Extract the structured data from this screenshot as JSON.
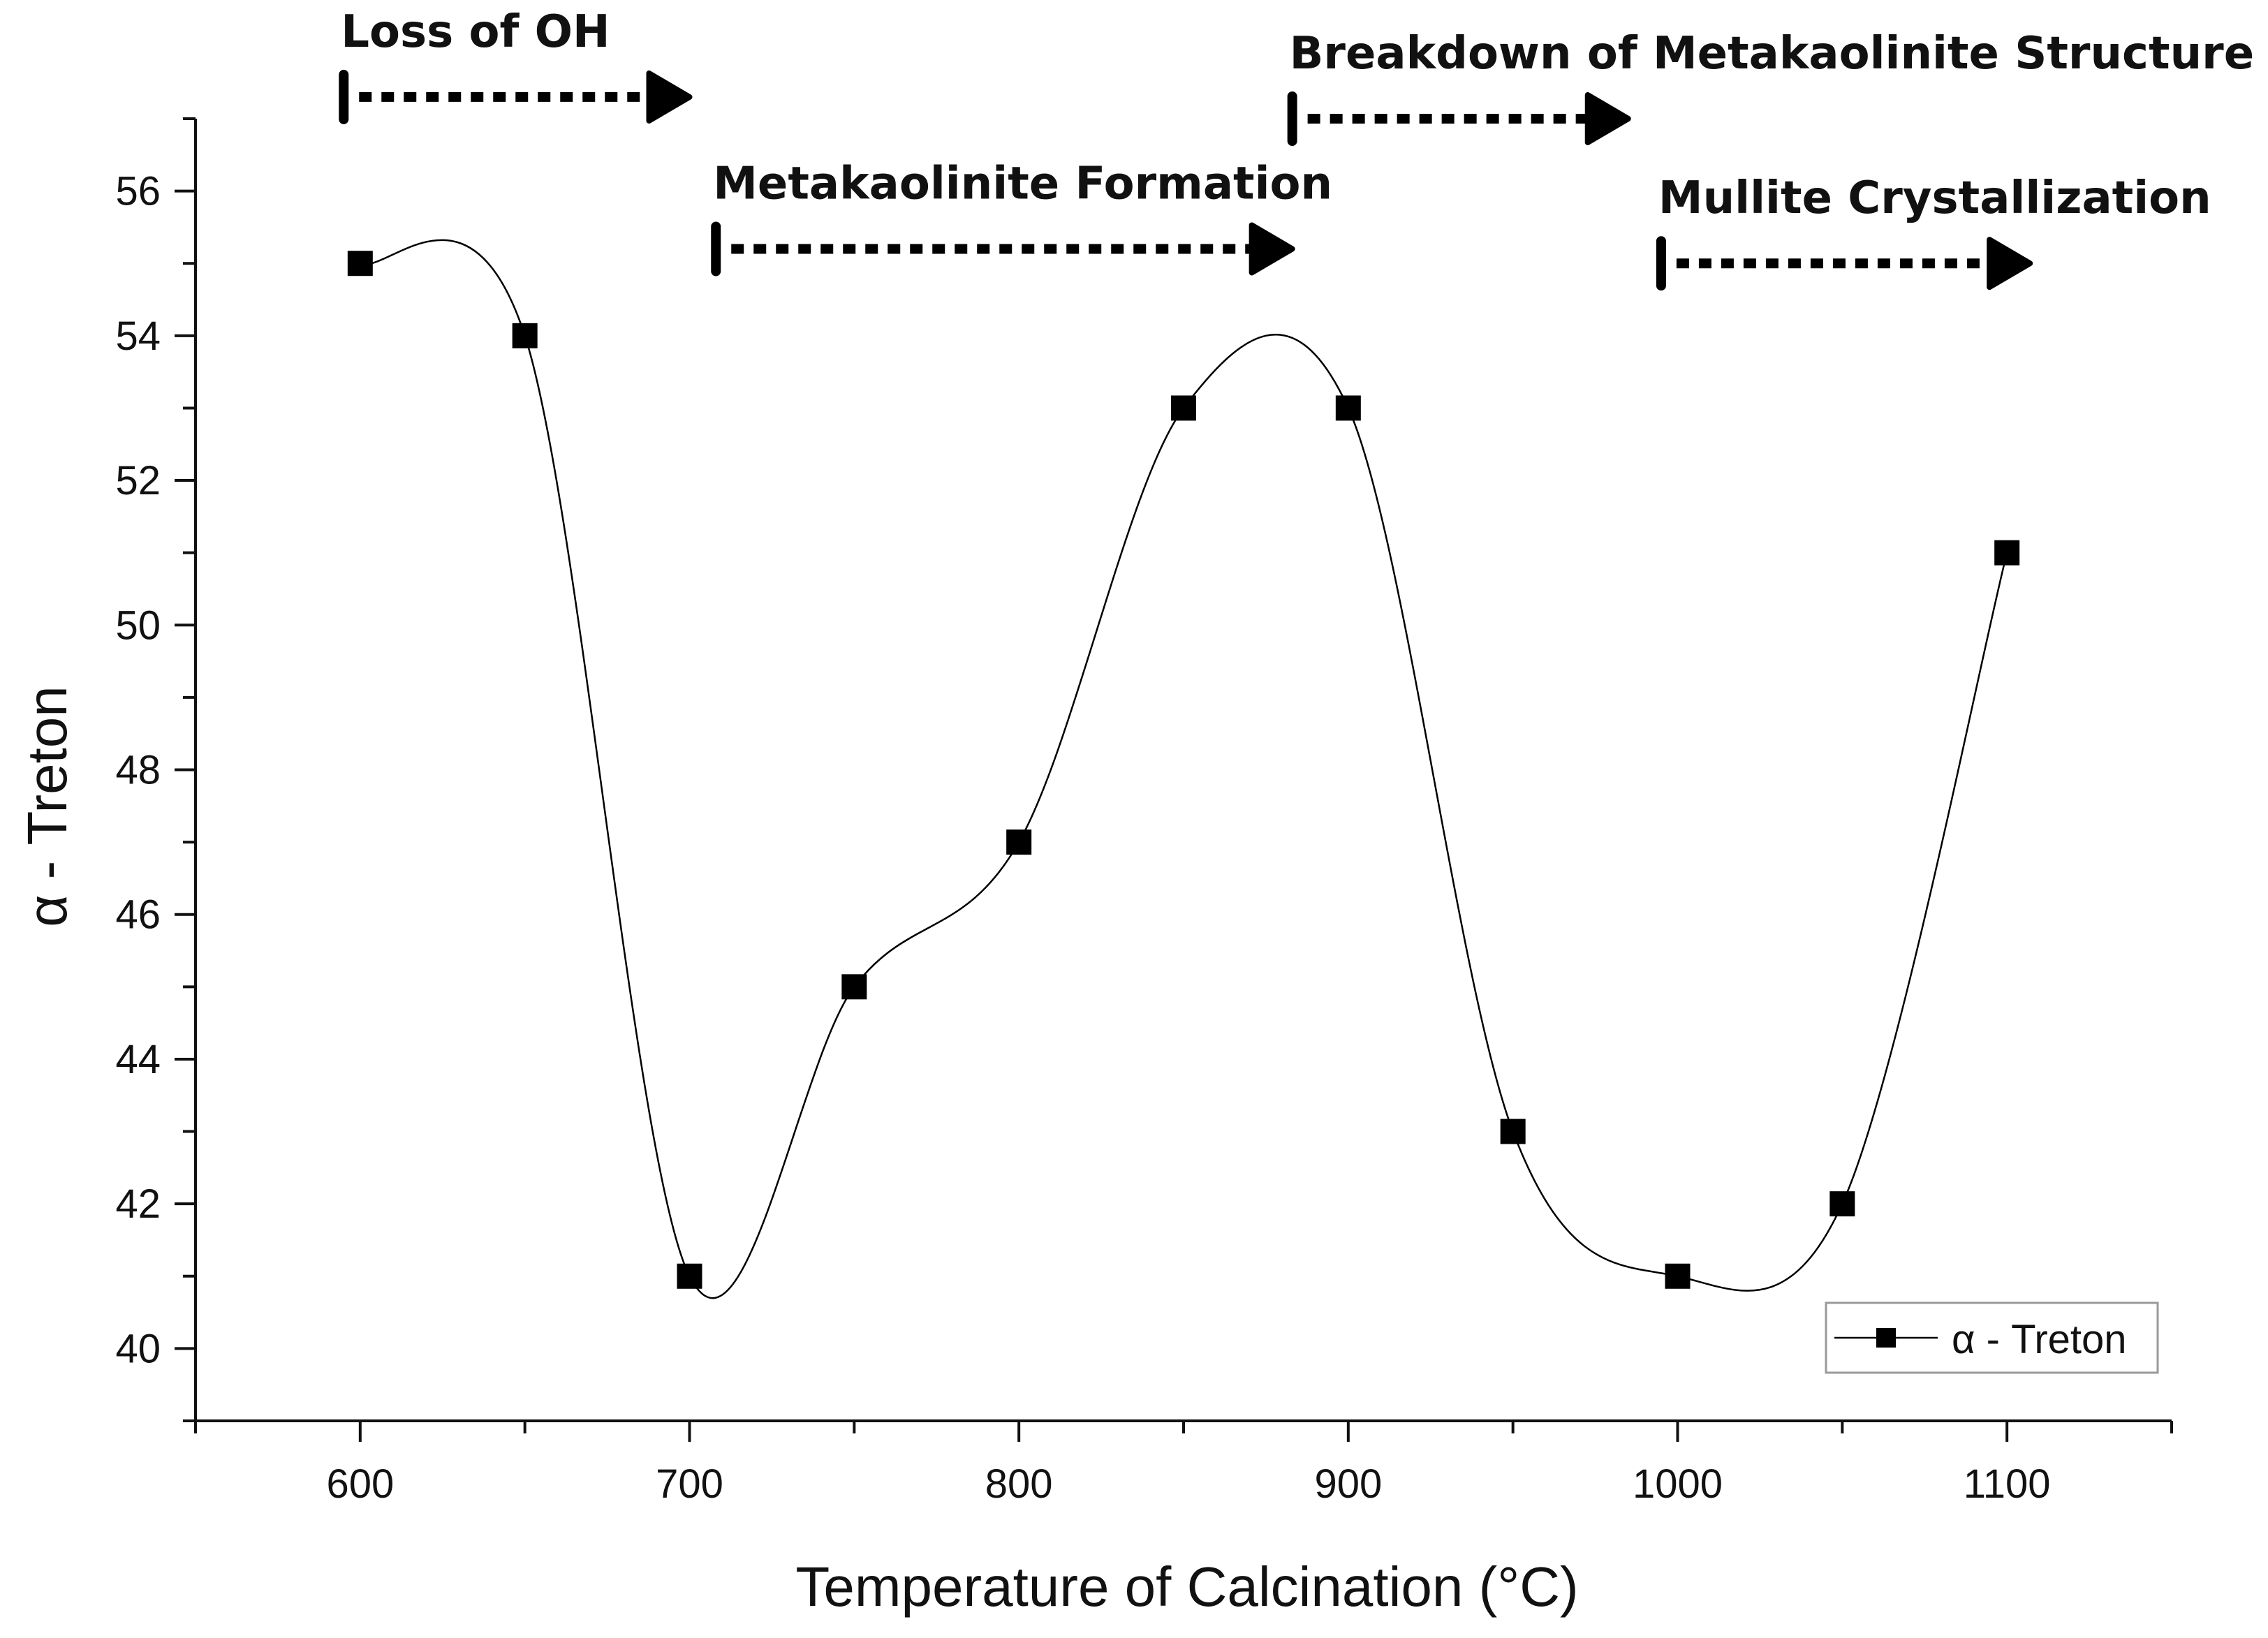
{
  "chart_data": {
    "type": "line",
    "title": "",
    "xlabel": "Temperature of Calcination (°C)",
    "ylabel": "α - Treton",
    "xlim": [
      550,
      1150
    ],
    "ylim": [
      39,
      57
    ],
    "x_ticks": [
      600,
      700,
      800,
      900,
      1000,
      1100
    ],
    "y_ticks": [
      40,
      42,
      44,
      46,
      48,
      50,
      52,
      54,
      56
    ],
    "grid": false,
    "legend_position": "bottom-right",
    "series": [
      {
        "name": "α - Treton",
        "marker": "square",
        "line": "smooth",
        "color": "#000000",
        "x": [
          600,
          650,
          700,
          750,
          800,
          850,
          900,
          950,
          1000,
          1050,
          1100
        ],
        "y": [
          55,
          54,
          41,
          45,
          47,
          53,
          53,
          43,
          41,
          42,
          51
        ]
      }
    ],
    "annotations": [
      {
        "text": "Loss of OH",
        "x_start": 595,
        "x_end": 700,
        "y": 57.3
      },
      {
        "text": "Metakaolinite Formation",
        "x_start": 708,
        "x_end": 883,
        "y": 55.2
      },
      {
        "text": "Breakdown of Metakaolinite Structure",
        "x_start": 883,
        "x_end": 985,
        "y": 57.0
      },
      {
        "text": "Mullite Crystallization",
        "x_start": 995,
        "x_end": 1107,
        "y": 55.0
      }
    ]
  }
}
